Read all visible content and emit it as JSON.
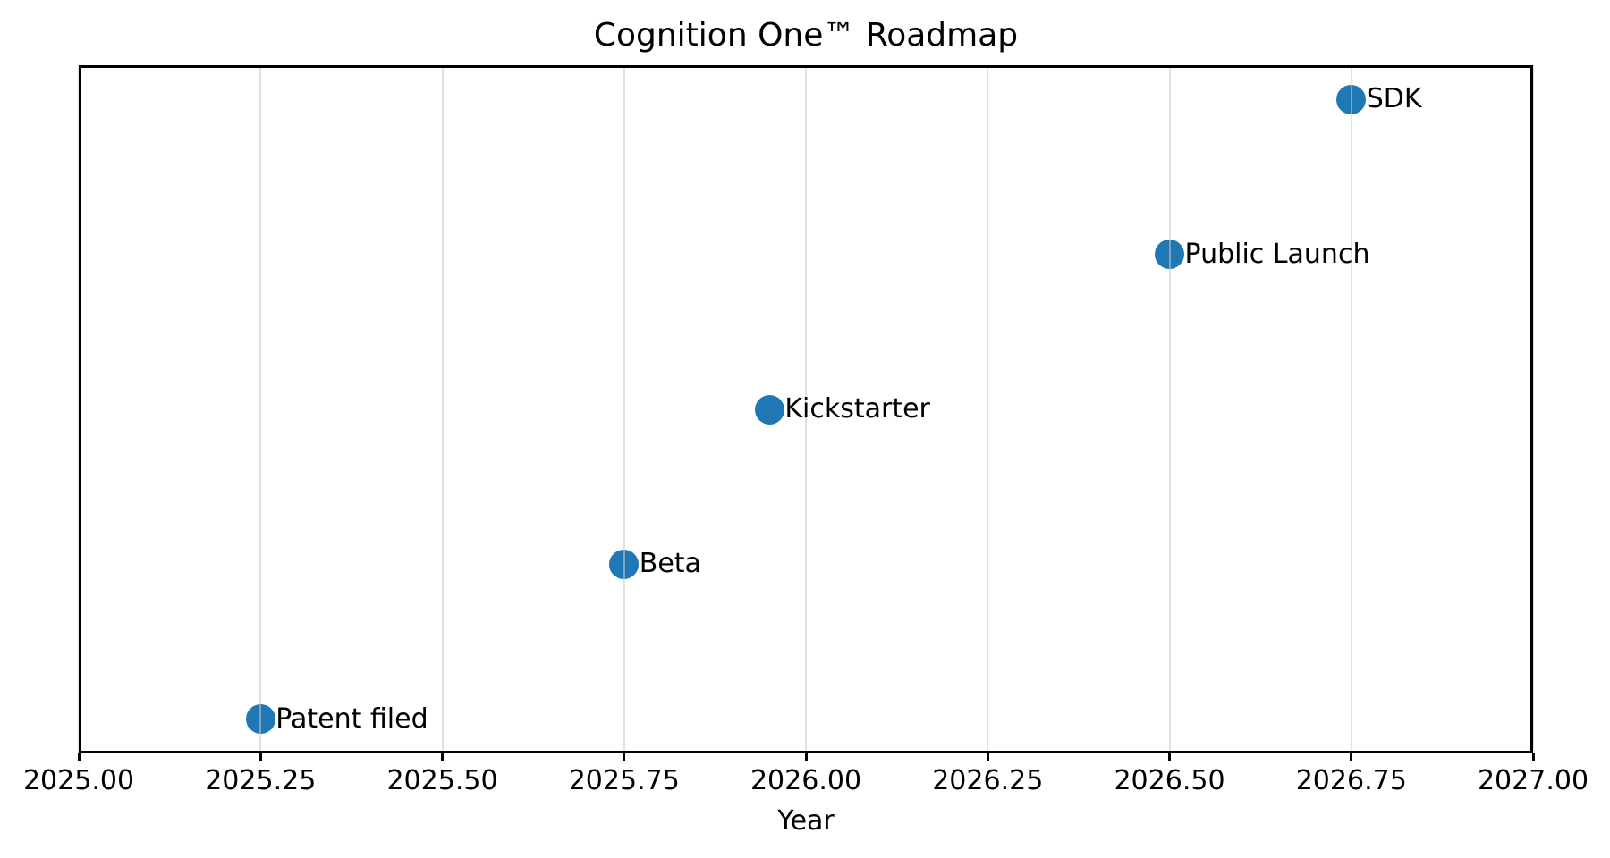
{
  "chart_data": {
    "type": "scatter",
    "title": "Cognition One™ Roadmap",
    "xlabel": "Year",
    "ylabel": "",
    "xlim": [
      2025.0,
      2027.0
    ],
    "ylim": [
      0.78,
      5.22
    ],
    "grid": "vertical-only",
    "legend": "none",
    "x_ticks": [
      2025.0,
      2025.25,
      2025.5,
      2025.75,
      2026.0,
      2026.25,
      2026.5,
      2026.75,
      2027.0
    ],
    "x_tick_labels": [
      "2025.00",
      "2025.25",
      "2025.50",
      "2025.75",
      "2026.00",
      "2026.25",
      "2026.50",
      "2026.75",
      "2027.00"
    ],
    "series": [
      {
        "name": "milestones",
        "marker": "circle",
        "points": [
          {
            "label": "Patent filed",
            "x": 2025.25,
            "y": 1
          },
          {
            "label": "Beta",
            "x": 2025.75,
            "y": 2
          },
          {
            "label": "Kickstarter",
            "x": 2025.95,
            "y": 3
          },
          {
            "label": "Public Launch",
            "x": 2026.5,
            "y": 4
          },
          {
            "label": "SDK",
            "x": 2026.75,
            "y": 5
          }
        ]
      }
    ]
  },
  "colors": {
    "marker": "#1f77b4",
    "grid": "rgba(200,200,200,0.55)",
    "spine": "#000000",
    "background": "#ffffff",
    "text": "#000000"
  }
}
